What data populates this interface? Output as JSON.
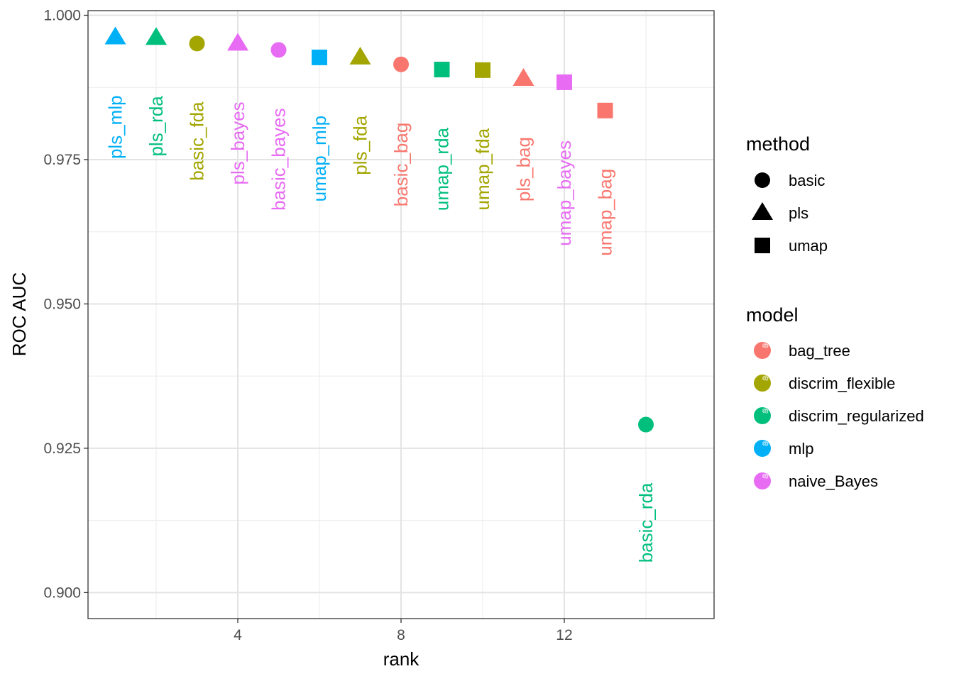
{
  "chart_data": {
    "type": "scatter",
    "title": "",
    "xlabel": "rank",
    "ylabel": "ROC AUC",
    "xlim": [
      0.33,
      15.67
    ],
    "ylim": [
      0.8955,
      1.0008
    ],
    "x_ticks": [
      4,
      8,
      12
    ],
    "y_ticks": [
      0.9,
      0.925,
      0.95,
      0.975,
      1.0
    ],
    "y_tick_labels": [
      "0.900",
      "0.925",
      "0.950",
      "0.975",
      "1.000"
    ],
    "grid": true,
    "legend_position": "right",
    "points": [
      {
        "rank": 1,
        "roc_auc": 0.9962,
        "label": "pls_mlp",
        "method": "pls",
        "model": "mlp"
      },
      {
        "rank": 2,
        "roc_auc": 0.9961,
        "label": "pls_rda",
        "method": "pls",
        "model": "discrim_regularized"
      },
      {
        "rank": 3,
        "roc_auc": 0.9951,
        "label": "basic_fda",
        "method": "basic",
        "model": "discrim_flexible"
      },
      {
        "rank": 4,
        "roc_auc": 0.9951,
        "label": "pls_bayes",
        "method": "pls",
        "model": "naive_Bayes"
      },
      {
        "rank": 5,
        "roc_auc": 0.994,
        "label": "basic_bayes",
        "method": "basic",
        "model": "naive_Bayes"
      },
      {
        "rank": 6,
        "roc_auc": 0.9927,
        "label": "umap_mlp",
        "method": "umap",
        "model": "mlp"
      },
      {
        "rank": 7,
        "roc_auc": 0.9927,
        "label": "pls_fda",
        "method": "pls",
        "model": "discrim_flexible"
      },
      {
        "rank": 8,
        "roc_auc": 0.9915,
        "label": "basic_bag",
        "method": "basic",
        "model": "bag_tree"
      },
      {
        "rank": 9,
        "roc_auc": 0.9906,
        "label": "umap_rda",
        "method": "umap",
        "model": "discrim_regularized"
      },
      {
        "rank": 10,
        "roc_auc": 0.9905,
        "label": "umap_fda",
        "method": "umap",
        "model": "discrim_flexible"
      },
      {
        "rank": 11,
        "roc_auc": 0.989,
        "label": "pls_bag",
        "method": "pls",
        "model": "bag_tree"
      },
      {
        "rank": 12,
        "roc_auc": 0.9884,
        "label": "umap_bayes",
        "method": "umap",
        "model": "naive_Bayes"
      },
      {
        "rank": 13,
        "roc_auc": 0.9835,
        "label": "umap_bag",
        "method": "umap",
        "model": "bag_tree"
      },
      {
        "rank": 14,
        "roc_auc": 0.9291,
        "label": "basic_rda",
        "method": "basic",
        "model": "discrim_regularized"
      }
    ],
    "legend": {
      "method": {
        "title": "method",
        "items": [
          {
            "label": "basic",
            "shape": "circle"
          },
          {
            "label": "pls",
            "shape": "triangle"
          },
          {
            "label": "umap",
            "shape": "square"
          }
        ]
      },
      "model": {
        "title": "model",
        "items": [
          {
            "label": "bag_tree",
            "color": "#F8766D"
          },
          {
            "label": "discrim_flexible",
            "color": "#A3A500"
          },
          {
            "label": "discrim_regularized",
            "color": "#00BF7D"
          },
          {
            "label": "mlp",
            "color": "#00B0F6"
          },
          {
            "label": "naive_Bayes",
            "color": "#E76BF3"
          }
        ]
      }
    }
  }
}
